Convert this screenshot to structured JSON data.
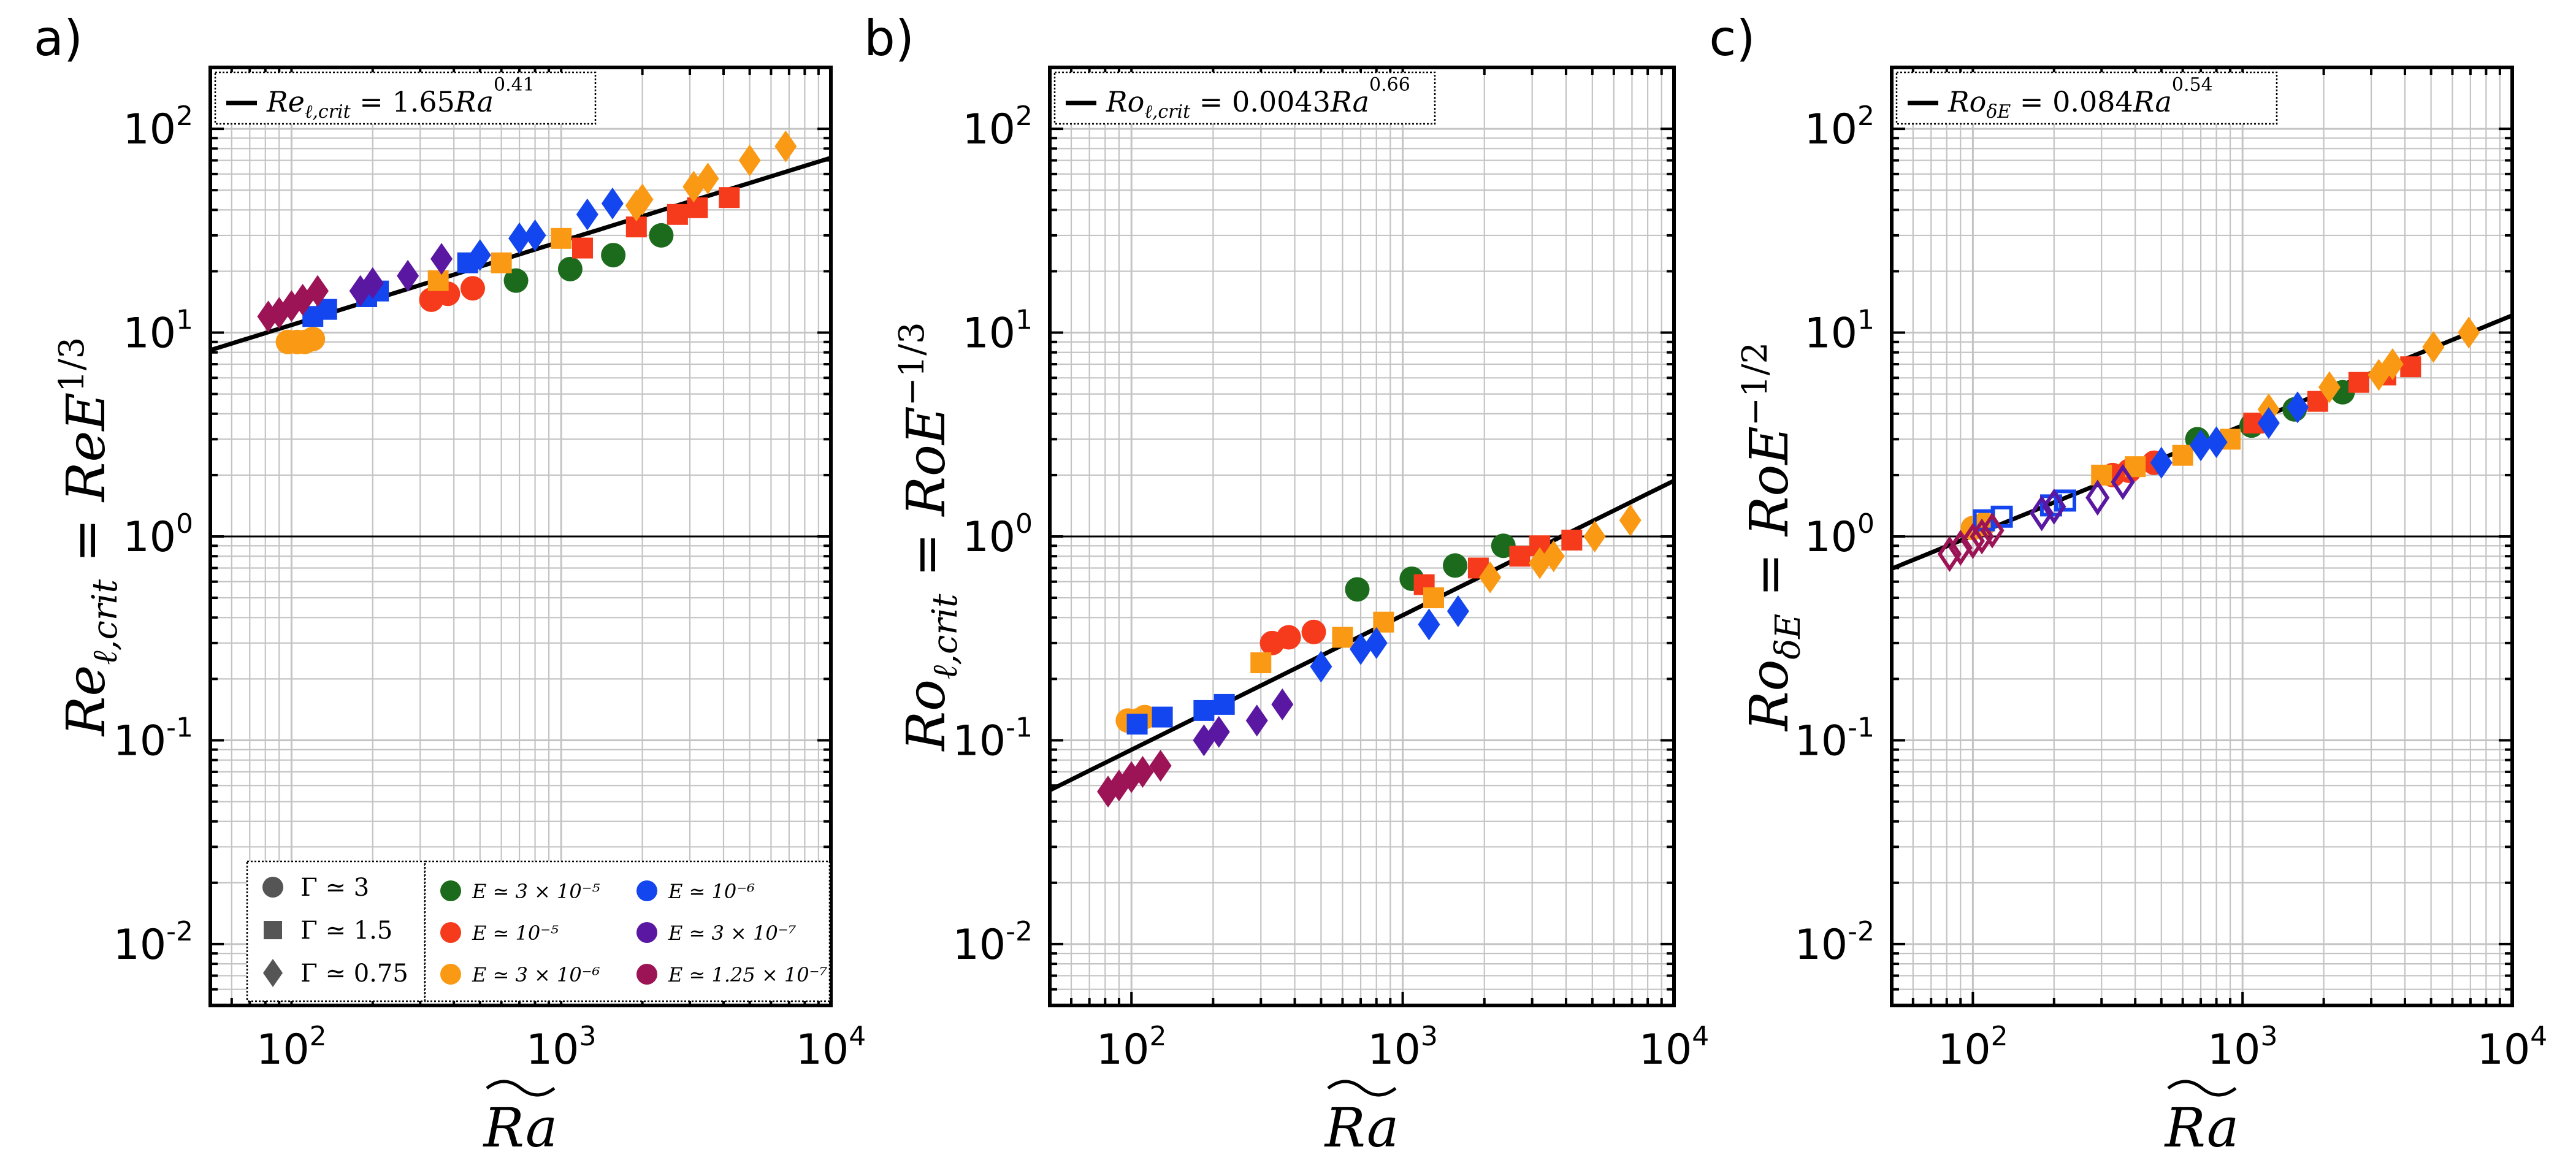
{
  "colors": {
    "E3e-5": "#1c6b1c",
    "E1e-5": "#f53b1b",
    "E3e-6": "#fa9a14",
    "E1e-6": "#1446f0",
    "E3e-7": "#5a18a2",
    "E1.25e-7": "#9c1456",
    "fit_line": "#000000",
    "grid": "#c4c4c4"
  },
  "chart_data": [
    {
      "type": "scatter",
      "panel_label": "a)",
      "xscale": "log",
      "yscale": "log",
      "xlim": [
        50,
        10000
      ],
      "ylim": [
        0.005,
        200
      ],
      "xticks": [
        100,
        1000,
        10000
      ],
      "xtick_labels": [
        "10^2",
        "10^3",
        "10^4"
      ],
      "yticks": [
        0.01,
        0.1,
        1,
        10,
        100
      ],
      "ytick_labels": [
        "10^-2",
        "10^-1",
        "10^0",
        "10^1",
        "10^2"
      ],
      "xlabel": "Ra~",
      "ylabel": "Re_ℓ,crit = ReE^1/3",
      "hline": 1,
      "fit": {
        "label_lhs": "Re",
        "label_sub": "ℓ,crit",
        "label_rhs": " = 1.65",
        "label_var": "Ra",
        "exponent": "0.41",
        "coef": 1.65,
        "exp": 0.41
      },
      "legend_shapes": {
        "placement": "bottom-left",
        "items": [
          {
            "marker": "circle",
            "label": "Γ ≃ 3"
          },
          {
            "marker": "square",
            "label": "Γ ≃ 1.5"
          },
          {
            "marker": "diamond",
            "label": "Γ ≃ 0.75"
          }
        ]
      },
      "legend_colors": {
        "placement": "bottom-right",
        "items": [
          {
            "key": "E3e-5",
            "label": "E ≃ 3 × 10⁻⁵"
          },
          {
            "key": "E1e-6",
            "label": "E ≃ 10⁻⁶"
          },
          {
            "key": "E1e-5",
            "label": "E ≃ 10⁻⁵"
          },
          {
            "key": "E3e-7",
            "label": "E ≃ 3 × 10⁻⁷"
          },
          {
            "key": "E3e-6",
            "label": "E ≃ 3 × 10⁻⁶"
          },
          {
            "key": "E1.25e-7",
            "label": "E ≃ 1.25 × 10⁻⁷"
          }
        ]
      },
      "series": [
        {
          "key": "E3e-5",
          "marker": "circle",
          "x": [
            680,
            1080,
            1560,
            2350
          ],
          "y": [
            18,
            20.5,
            24,
            30
          ]
        },
        {
          "key": "E1e-5",
          "marker": "circle",
          "x": [
            330,
            380,
            470
          ],
          "y": [
            14.5,
            15.5,
            16.5
          ]
        },
        {
          "key": "E1e-5",
          "marker": "square",
          "x": [
            1200,
            1900,
            2700,
            3200,
            4200
          ],
          "y": [
            26,
            33,
            38,
            41,
            46
          ]
        },
        {
          "key": "E3e-6",
          "marker": "circle",
          "x": [
            97,
            105,
            112,
            120
          ],
          "y": [
            9,
            9,
            9,
            9.3
          ]
        },
        {
          "key": "E3e-6",
          "marker": "square",
          "x": [
            350,
            600,
            1000
          ],
          "y": [
            18,
            22,
            29
          ]
        },
        {
          "key": "E3e-6",
          "marker": "diamond",
          "x": [
            1900,
            2000,
            3100,
            3500,
            5000,
            6800
          ],
          "y": [
            42,
            45,
            52,
            57,
            70,
            82
          ]
        },
        {
          "key": "E1e-6",
          "marker": "square",
          "x": [
            120,
            135,
            190,
            210,
            450
          ],
          "y": [
            12,
            13,
            15,
            16,
            22
          ]
        },
        {
          "key": "E1e-6",
          "marker": "diamond",
          "x": [
            500,
            700,
            800,
            1250,
            1550
          ],
          "y": [
            24,
            29,
            30,
            38,
            43
          ]
        },
        {
          "key": "E3e-7",
          "marker": "diamond",
          "x": [
            180,
            200,
            270,
            360
          ],
          "y": [
            16,
            17.5,
            19,
            23
          ]
        },
        {
          "key": "E1.25e-7",
          "marker": "diamond",
          "x": [
            82,
            90,
            100,
            110,
            125
          ],
          "y": [
            12,
            12.5,
            13.5,
            14.5,
            16
          ]
        }
      ]
    },
    {
      "type": "scatter",
      "panel_label": "b)",
      "xscale": "log",
      "yscale": "log",
      "xlim": [
        50,
        10000
      ],
      "ylim": [
        0.005,
        200
      ],
      "xticks": [
        100,
        1000,
        10000
      ],
      "xtick_labels": [
        "10^2",
        "10^3",
        "10^4"
      ],
      "yticks": [
        0.01,
        0.1,
        1,
        10,
        100
      ],
      "ytick_labels": [
        "10^-2",
        "10^-1",
        "10^0",
        "10^1",
        "10^2"
      ],
      "xlabel": "Ra~",
      "ylabel": "Ro_ℓ,crit = RoE^−1/3",
      "hline": 1,
      "fit": {
        "label_lhs": "Ro",
        "label_sub": "ℓ,crit",
        "label_rhs": " = 0.0043",
        "label_var": "Ra",
        "exponent": "0.66",
        "coef": 0.0043,
        "exp": 0.66
      },
      "series": [
        {
          "key": "E3e-5",
          "marker": "circle",
          "x": [
            680,
            1080,
            1560,
            2350
          ],
          "y": [
            0.55,
            0.62,
            0.72,
            0.9
          ]
        },
        {
          "key": "E1e-5",
          "marker": "circle",
          "x": [
            330,
            380,
            470
          ],
          "y": [
            0.3,
            0.32,
            0.34
          ]
        },
        {
          "key": "E1e-5",
          "marker": "square",
          "x": [
            1200,
            1900,
            2700,
            3200,
            4200
          ],
          "y": [
            0.58,
            0.7,
            0.8,
            0.9,
            0.96
          ]
        },
        {
          "key": "E3e-6",
          "marker": "circle",
          "x": [
            97,
            105,
            112
          ],
          "y": [
            0.125,
            0.125,
            0.13
          ]
        },
        {
          "key": "E3e-6",
          "marker": "square",
          "x": [
            300,
            600,
            850,
            1300
          ],
          "y": [
            0.24,
            0.32,
            0.38,
            0.5
          ]
        },
        {
          "key": "E3e-6",
          "marker": "diamond",
          "x": [
            2100,
            3200,
            3600,
            5100,
            6900
          ],
          "y": [
            0.63,
            0.74,
            0.8,
            1.0,
            1.2
          ]
        },
        {
          "key": "E1e-6",
          "marker": "square",
          "x": [
            105,
            130,
            185,
            220
          ],
          "y": [
            0.12,
            0.13,
            0.14,
            0.15
          ]
        },
        {
          "key": "E1e-6",
          "marker": "diamond",
          "x": [
            500,
            700,
            800,
            1250,
            1600
          ],
          "y": [
            0.23,
            0.28,
            0.3,
            0.37,
            0.43
          ]
        },
        {
          "key": "E3e-7",
          "marker": "diamond",
          "x": [
            185,
            210,
            290,
            360
          ],
          "y": [
            0.1,
            0.11,
            0.125,
            0.15
          ]
        },
        {
          "key": "E1.25e-7",
          "marker": "diamond",
          "x": [
            82,
            90,
            100,
            110,
            128
          ],
          "y": [
            0.056,
            0.06,
            0.066,
            0.07,
            0.075
          ]
        }
      ]
    },
    {
      "type": "scatter",
      "panel_label": "c)",
      "xscale": "log",
      "yscale": "log",
      "xlim": [
        50,
        10000
      ],
      "ylim": [
        0.005,
        200
      ],
      "xticks": [
        100,
        1000,
        10000
      ],
      "xtick_labels": [
        "10^2",
        "10^3",
        "10^4"
      ],
      "yticks": [
        0.01,
        0.1,
        1,
        10,
        100
      ],
      "ytick_labels": [
        "10^-2",
        "10^-1",
        "10^0",
        "10^1",
        "10^2"
      ],
      "xlabel": "Ra~",
      "ylabel": "Ro_δE = RoE^−1/2",
      "hline": 1,
      "fit": {
        "label_lhs": "Ro",
        "label_sub": "δE",
        "label_rhs": " = 0.084",
        "label_var": "Ra",
        "exponent": "0.54",
        "coef": 0.084,
        "exp": 0.54
      },
      "series": [
        {
          "key": "E3e-5",
          "marker": "circle",
          "x": [
            680,
            1080,
            1560,
            2350
          ],
          "y": [
            3.0,
            3.5,
            4.2,
            5.1
          ]
        },
        {
          "key": "E1e-5",
          "marker": "circle",
          "x": [
            330,
            380,
            470
          ],
          "y": [
            2.0,
            2.1,
            2.3
          ]
        },
        {
          "key": "E1e-5",
          "marker": "square",
          "x": [
            1100,
            1900,
            2700,
            3400,
            4200
          ],
          "y": [
            3.6,
            4.6,
            5.7,
            6.2,
            6.8
          ]
        },
        {
          "key": "E3e-6",
          "marker": "circle",
          "x": [
            100,
            110
          ],
          "y": [
            1.1,
            1.15
          ]
        },
        {
          "key": "E3e-6",
          "marker": "square",
          "x": [
            300,
            400,
            600,
            900
          ],
          "y": [
            2.0,
            2.2,
            2.5,
            3.0
          ]
        },
        {
          "key": "E3e-6",
          "marker": "diamond",
          "x": [
            1250,
            2100,
            3200,
            3600,
            5100,
            6900
          ],
          "y": [
            4.2,
            5.4,
            6.2,
            7.0,
            8.5,
            10
          ]
        },
        {
          "key": "E1e-6",
          "marker": "square_open",
          "x": [
            110,
            128,
            195,
            220
          ],
          "y": [
            1.2,
            1.25,
            1.42,
            1.5
          ]
        },
        {
          "key": "E1e-6",
          "marker": "diamond",
          "x": [
            500,
            700,
            800,
            1250,
            1600
          ],
          "y": [
            2.3,
            2.8,
            2.9,
            3.6,
            4.3
          ]
        },
        {
          "key": "E3e-7",
          "marker": "diamond_open",
          "x": [
            180,
            200,
            290,
            360
          ],
          "y": [
            1.3,
            1.4,
            1.55,
            1.85
          ]
        },
        {
          "key": "E1.25e-7",
          "marker": "diamond_open",
          "x": [
            82,
            90,
            100,
            108,
            118
          ],
          "y": [
            0.82,
            0.88,
            0.95,
            1.0,
            1.07
          ]
        }
      ]
    }
  ]
}
